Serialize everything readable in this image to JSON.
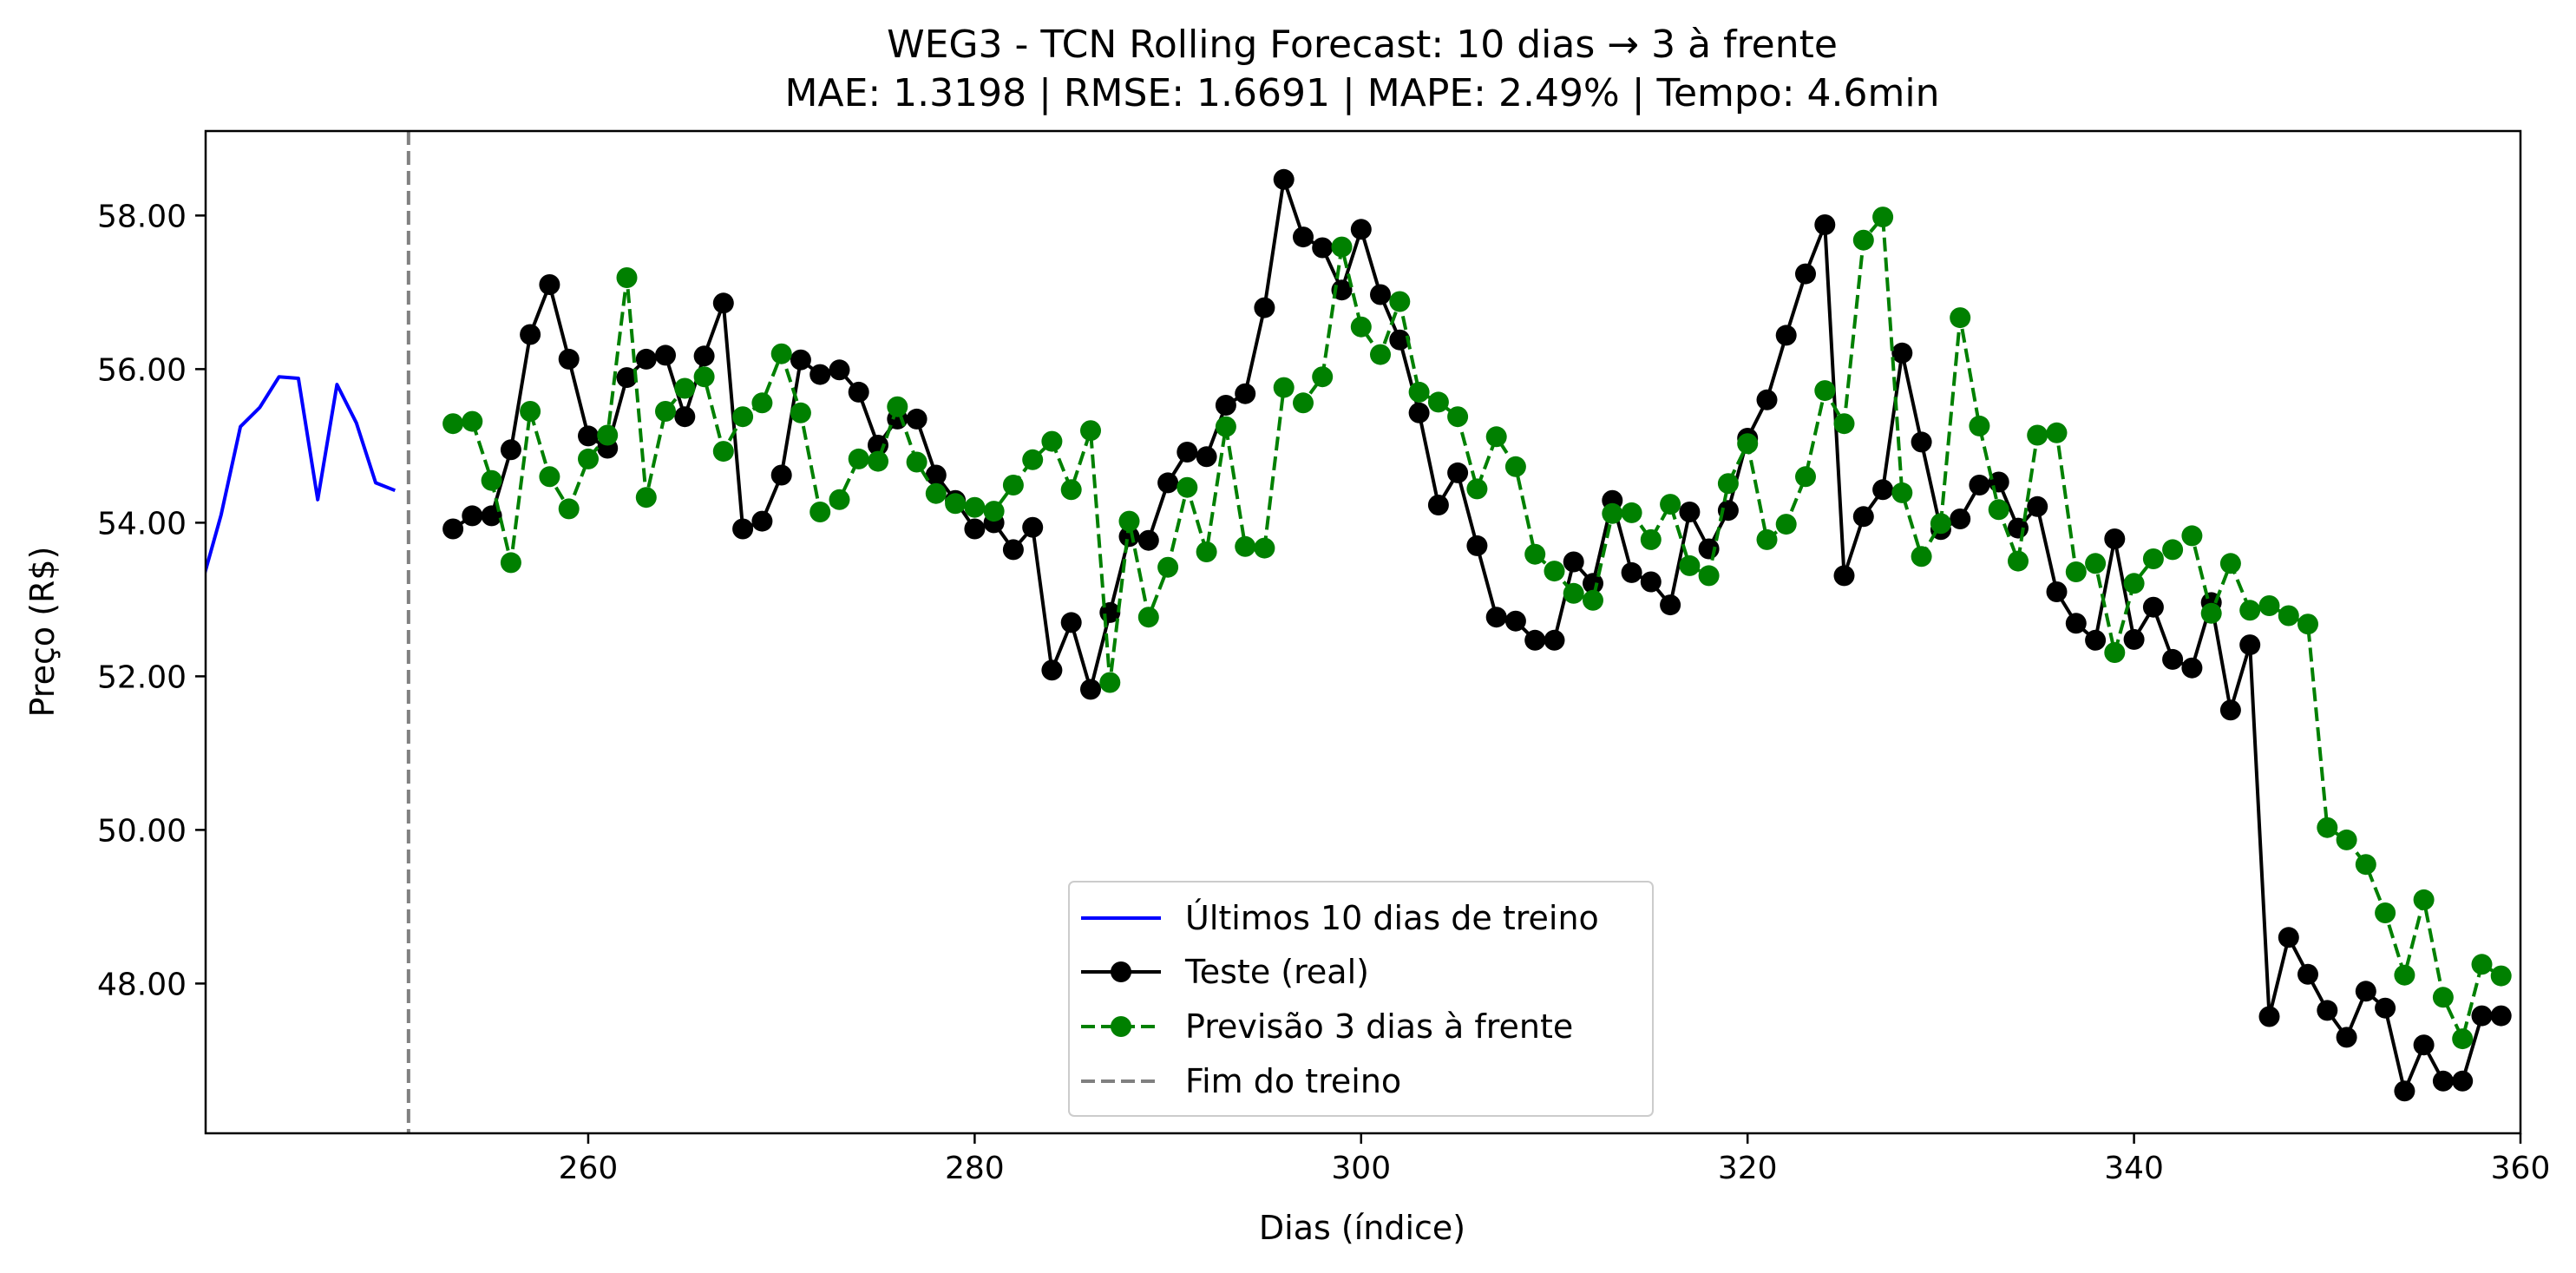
{
  "chart_data": {
    "type": "line",
    "title": "WEG3 - TCN Rolling Forecast: 10 dias → 3 à frente",
    "subtitle": "MAE: 1.3198 | RMSE: 1.6691 | MAPE: 2.49% | Tempo: 4.6min",
    "xlabel": "Dias (índice)",
    "ylabel": "Preço (R$)",
    "xlim": [
      240.2,
      360
    ],
    "ylim": [
      46.05,
      59.1
    ],
    "xticks": [
      260,
      280,
      300,
      320,
      340,
      360
    ],
    "xtick_labels": [
      "260",
      "280",
      "300",
      "320",
      "340",
      "360"
    ],
    "yticks": [
      48,
      50,
      52,
      54,
      56,
      58
    ],
    "ytick_labels": [
      "48.00",
      "50.00",
      "52.00",
      "54.00",
      "56.00",
      "58.00"
    ],
    "grid": false,
    "legend_position": "lower center",
    "vline": {
      "x": 250.7,
      "color": "#808080",
      "style": "dashed",
      "legend": "Fim do treino"
    },
    "series": [
      {
        "name": "Últimos 10 dias de treino",
        "color": "#0000ff",
        "style": "solid",
        "marker": "none",
        "x": [
          240,
          241,
          242,
          243,
          244,
          245,
          246,
          247,
          248,
          249,
          250
        ],
        "y": [
          53.2,
          54.1,
          55.25,
          55.5,
          55.9,
          55.88,
          54.3,
          55.8,
          55.3,
          54.52,
          54.42
        ]
      },
      {
        "name": "Teste (real)",
        "color": "#000000",
        "style": "solid",
        "marker": "circle",
        "x": [
          253,
          254,
          255,
          256,
          257,
          258,
          259,
          260,
          261,
          262,
          263,
          264,
          265,
          266,
          267,
          268,
          269,
          270,
          271,
          272,
          273,
          274,
          275,
          276,
          277,
          278,
          279,
          280,
          281,
          282,
          283,
          284,
          285,
          286,
          287,
          288,
          289,
          290,
          291,
          292,
          293,
          294,
          295,
          296,
          297,
          298,
          299,
          300,
          301,
          302,
          303,
          304,
          305,
          306,
          307,
          308,
          309,
          310,
          311,
          312,
          313,
          314,
          315,
          316,
          317,
          318,
          319,
          320,
          321,
          322,
          323,
          324,
          325,
          326,
          327,
          328,
          329,
          330,
          331,
          332,
          333,
          334,
          335,
          336,
          337,
          338,
          339,
          340,
          341,
          342,
          343,
          344,
          345,
          346,
          347,
          348,
          349,
          350,
          351,
          352,
          353,
          354,
          355,
          356,
          357,
          358,
          359
        ],
        "y": [
          53.92,
          54.09,
          54.09,
          54.95,
          56.45,
          57.1,
          56.13,
          55.13,
          54.97,
          55.89,
          56.13,
          56.18,
          55.38,
          56.17,
          56.86,
          53.92,
          54.02,
          54.62,
          56.12,
          55.93,
          55.99,
          55.7,
          55.01,
          55.35,
          55.35,
          54.62,
          54.29,
          53.92,
          54.0,
          53.65,
          53.94,
          52.08,
          52.7,
          51.83,
          52.83,
          53.82,
          53.77,
          54.52,
          54.92,
          54.86,
          55.53,
          55.68,
          56.8,
          58.47,
          57.72,
          57.58,
          57.03,
          57.82,
          56.97,
          56.38,
          55.43,
          54.23,
          54.65,
          53.7,
          52.77,
          52.72,
          52.47,
          52.47,
          53.49,
          53.21,
          54.29,
          53.35,
          53.23,
          52.93,
          54.14,
          53.66,
          54.16,
          55.1,
          55.6,
          56.44,
          57.24,
          57.88,
          53.31,
          54.08,
          54.43,
          56.21,
          55.05,
          53.91,
          54.05,
          54.49,
          54.53,
          53.93,
          54.21,
          53.1,
          52.69,
          52.47,
          53.79,
          52.48,
          52.9,
          52.22,
          52.11,
          52.96,
          51.56,
          52.41,
          47.57,
          48.6,
          48.12,
          47.65,
          47.3,
          47.9,
          47.68,
          46.6,
          47.2,
          46.73,
          46.73,
          47.58,
          47.58
        ]
      },
      {
        "name": "Previsão 3 dias à frente",
        "color": "#008000",
        "style": "dashed",
        "marker": "circle",
        "x": [
          253,
          254,
          255,
          256,
          257,
          258,
          259,
          260,
          261,
          262,
          263,
          264,
          265,
          266,
          267,
          268,
          269,
          270,
          271,
          272,
          273,
          274,
          275,
          276,
          277,
          278,
          279,
          280,
          281,
          282,
          283,
          284,
          285,
          286,
          287,
          288,
          289,
          290,
          291,
          292,
          293,
          294,
          295,
          296,
          297,
          298,
          299,
          300,
          301,
          302,
          303,
          304,
          305,
          306,
          307,
          308,
          309,
          310,
          311,
          312,
          313,
          314,
          315,
          316,
          317,
          318,
          319,
          320,
          321,
          322,
          323,
          324,
          325,
          326,
          327,
          328,
          329,
          330,
          331,
          332,
          333,
          334,
          335,
          336,
          337,
          338,
          339,
          340,
          341,
          342,
          343,
          344,
          345,
          346,
          347,
          348,
          349,
          350,
          351,
          352,
          353,
          354,
          355,
          356,
          357,
          358,
          359
        ],
        "y": [
          55.29,
          55.32,
          54.55,
          53.48,
          55.45,
          54.6,
          54.18,
          54.83,
          55.14,
          57.19,
          54.33,
          55.45,
          55.75,
          55.9,
          54.93,
          55.38,
          55.56,
          56.2,
          55.43,
          54.14,
          54.3,
          54.83,
          54.8,
          55.51,
          54.79,
          54.38,
          54.25,
          54.2,
          54.15,
          54.49,
          54.82,
          55.06,
          54.43,
          55.2,
          51.92,
          54.02,
          52.77,
          53.42,
          54.46,
          53.62,
          55.25,
          53.69,
          53.67,
          55.76,
          55.56,
          55.9,
          57.59,
          56.55,
          56.19,
          56.88,
          55.7,
          55.57,
          55.38,
          54.44,
          55.12,
          54.73,
          53.59,
          53.37,
          53.08,
          52.99,
          54.12,
          54.13,
          53.78,
          54.24,
          53.44,
          53.31,
          54.51,
          55.03,
          53.78,
          53.98,
          54.6,
          55.72,
          55.29,
          57.68,
          57.98,
          54.39,
          53.56,
          53.99,
          56.67,
          55.26,
          54.17,
          53.5,
          55.14,
          55.17,
          53.36,
          53.47,
          52.31,
          53.21,
          53.53,
          53.65,
          53.83,
          52.82,
          53.47,
          52.86,
          52.92,
          52.79,
          52.68,
          50.03,
          49.87,
          49.55,
          48.92,
          48.11,
          49.09,
          47.82,
          47.28,
          48.25,
          48.1
        ]
      }
    ]
  }
}
